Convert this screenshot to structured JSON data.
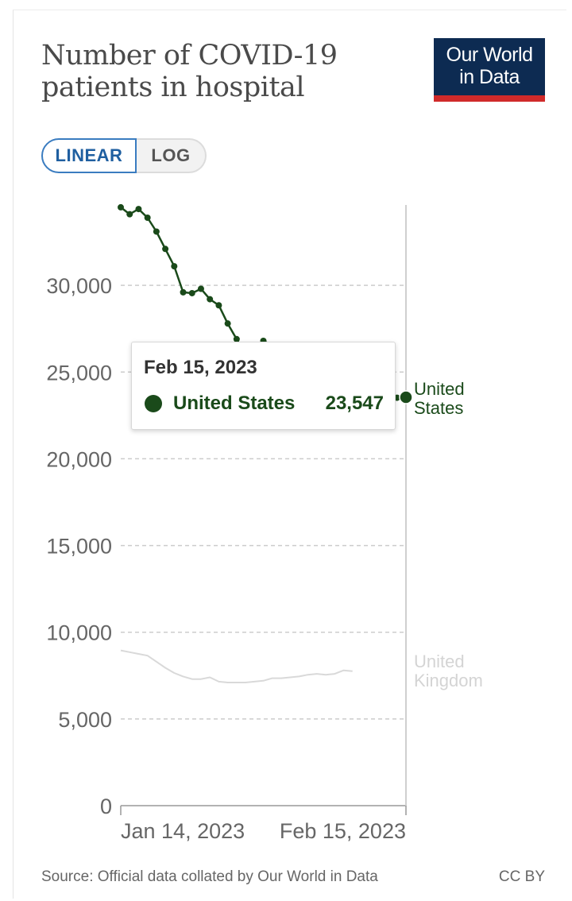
{
  "header": {
    "title": "Number of COVID-19 patients in hospital",
    "logo_line1": "Our World",
    "logo_line2": "in Data"
  },
  "controls": {
    "linear_label": "LINEAR",
    "log_label": "LOG",
    "selected": "linear"
  },
  "tooltip": {
    "date": "Feb 15, 2023",
    "series": "United States",
    "value": "23,547"
  },
  "footer": {
    "source": "Source: Official data collated by Our World in Data",
    "license": "CC BY"
  },
  "colors": {
    "us": "#1a4a1a",
    "uk": "#d9d9d9",
    "grid": "#cccccc",
    "logo_bg": "#0d2b52",
    "logo_accent": "#d02a2a"
  },
  "chart_data": {
    "type": "line",
    "ylim": [
      0,
      35000
    ],
    "yticks": [
      0,
      5000,
      10000,
      15000,
      20000,
      25000,
      30000
    ],
    "ytick_labels": [
      "0",
      "5,000",
      "10,000",
      "15,000",
      "20,000",
      "25,000",
      "30,000"
    ],
    "xlim": [
      "2023-01-14",
      "2023-02-15"
    ],
    "xtick_labels": [
      "Jan 14, 2023",
      "Feb 15, 2023"
    ],
    "grid": true,
    "legend": "inline-right",
    "series": [
      {
        "name": "United States",
        "label_lines": [
          "United",
          "States"
        ],
        "highlighted": true,
        "points": [
          [
            "2023-01-14",
            34500
          ],
          [
            "2023-01-15",
            34100
          ],
          [
            "2023-01-16",
            34400
          ],
          [
            "2023-01-17",
            33900
          ],
          [
            "2023-01-18",
            33100
          ],
          [
            "2023-01-19",
            32100
          ],
          [
            "2023-01-20",
            31100
          ],
          [
            "2023-01-21",
            29600
          ],
          [
            "2023-01-22",
            29550
          ],
          [
            "2023-01-23",
            29800
          ],
          [
            "2023-01-24",
            29200
          ],
          [
            "2023-01-25",
            28850
          ],
          [
            "2023-01-26",
            27800
          ],
          [
            "2023-01-27",
            26900
          ],
          [
            "2023-01-28",
            26000
          ],
          [
            "2023-01-29",
            26300
          ],
          [
            "2023-01-30",
            26800
          ],
          [
            "2023-01-31",
            26550
          ],
          [
            "2023-02-01",
            26200
          ],
          [
            "2023-02-02",
            25500
          ],
          [
            "2023-02-03",
            24600
          ],
          [
            "2023-02-04",
            23800
          ],
          [
            "2023-02-05",
            24000
          ],
          [
            "2023-02-06",
            24700
          ],
          [
            "2023-02-07",
            24400
          ],
          [
            "2023-02-08",
            24200
          ],
          [
            "2023-02-09",
            23700
          ],
          [
            "2023-02-10",
            23600
          ],
          [
            "2023-02-11",
            23500
          ],
          [
            "2023-02-12",
            23550
          ],
          [
            "2023-02-13",
            23500
          ],
          [
            "2023-02-14",
            23520
          ],
          [
            "2023-02-15",
            23547
          ]
        ]
      },
      {
        "name": "United Kingdom",
        "label_lines": [
          "United",
          "Kingdom"
        ],
        "highlighted": false,
        "points": [
          [
            "2023-01-14",
            8950
          ],
          [
            "2023-01-15",
            8850
          ],
          [
            "2023-01-16",
            8750
          ],
          [
            "2023-01-17",
            8650
          ],
          [
            "2023-01-18",
            8300
          ],
          [
            "2023-01-19",
            7950
          ],
          [
            "2023-01-20",
            7650
          ],
          [
            "2023-01-21",
            7450
          ],
          [
            "2023-01-22",
            7300
          ],
          [
            "2023-01-23",
            7300
          ],
          [
            "2023-01-24",
            7400
          ],
          [
            "2023-01-25",
            7150
          ],
          [
            "2023-01-26",
            7100
          ],
          [
            "2023-01-27",
            7100
          ],
          [
            "2023-01-28",
            7100
          ],
          [
            "2023-01-29",
            7150
          ],
          [
            "2023-01-30",
            7200
          ],
          [
            "2023-01-31",
            7350
          ],
          [
            "2023-02-01",
            7350
          ],
          [
            "2023-02-02",
            7400
          ],
          [
            "2023-02-03",
            7450
          ],
          [
            "2023-02-04",
            7550
          ],
          [
            "2023-02-05",
            7600
          ],
          [
            "2023-02-06",
            7550
          ],
          [
            "2023-02-07",
            7600
          ],
          [
            "2023-02-08",
            7800
          ],
          [
            "2023-02-09",
            7750
          ]
        ]
      }
    ]
  }
}
